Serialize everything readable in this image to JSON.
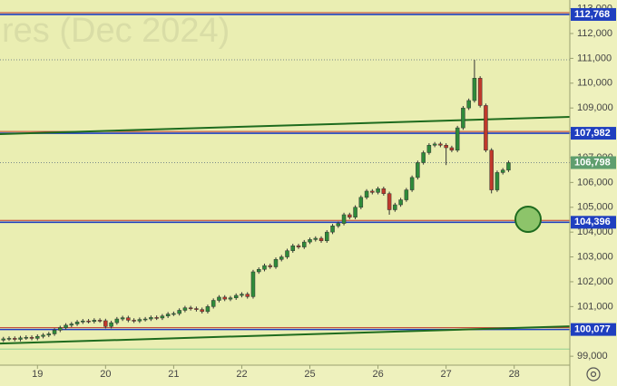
{
  "chart_data": {
    "type": "candlestick",
    "watermark": "res (Dec 2024)",
    "xlim": [
      -0.6,
      99.8
    ],
    "xticks": [
      {
        "value": 6,
        "label": "19"
      },
      {
        "value": 18,
        "label": "20"
      },
      {
        "value": 30,
        "label": "21"
      },
      {
        "value": 42,
        "label": "22"
      },
      {
        "value": 54,
        "label": "25"
      },
      {
        "value": 66,
        "label": "26"
      },
      {
        "value": 78,
        "label": "27"
      },
      {
        "value": 90,
        "label": "28"
      }
    ],
    "ylim": [
      98640,
      113350
    ],
    "yticks": [
      {
        "value": 99000,
        "label": "99,000"
      },
      {
        "value": 100000,
        "label": "100,000"
      },
      {
        "value": 101000,
        "label": "101,000"
      },
      {
        "value": 102000,
        "label": "102,000"
      },
      {
        "value": 103000,
        "label": "103,000"
      },
      {
        "value": 104000,
        "label": "104,000"
      },
      {
        "value": 105000,
        "label": "105,000"
      },
      {
        "value": 106000,
        "label": "106,000"
      },
      {
        "value": 107000,
        "label": "107,000"
      },
      {
        "value": 108000,
        "label": "108,000"
      },
      {
        "value": 109000,
        "label": "109,000"
      },
      {
        "value": 110000,
        "label": "110,000"
      },
      {
        "value": 111000,
        "label": "111,000"
      },
      {
        "value": 112000,
        "label": "112,000"
      },
      {
        "value": 113000,
        "label": "113,000"
      }
    ],
    "series": {
      "up_color": "#2e8b3a",
      "down_color": "#c0392b",
      "x": [
        0,
        1,
        2,
        3,
        4,
        5,
        6,
        7,
        8,
        9,
        10,
        11,
        12,
        13,
        14,
        15,
        16,
        17,
        18,
        19,
        20,
        21,
        22,
        23,
        24,
        25,
        26,
        27,
        28,
        29,
        30,
        31,
        32,
        33,
        34,
        35,
        36,
        37,
        38,
        39,
        40,
        41,
        42,
        43,
        44,
        45,
        46,
        47,
        48,
        49,
        50,
        51,
        52,
        53,
        54,
        55,
        56,
        57,
        58,
        59,
        60,
        61,
        62,
        63,
        64,
        65,
        66,
        67,
        68,
        69,
        70,
        71,
        72,
        73,
        74,
        75,
        76,
        77,
        78,
        79,
        80,
        81,
        82,
        83,
        84,
        85,
        86,
        87,
        88,
        89
      ],
      "open": [
        99650,
        99700,
        99720,
        99680,
        99740,
        99760,
        99720,
        99800,
        99850,
        99900,
        100050,
        100150,
        100250,
        100300,
        100380,
        100420,
        100400,
        100450,
        100430,
        100200,
        100350,
        100500,
        100550,
        100450,
        100420,
        100480,
        100500,
        100560,
        100540,
        100620,
        100700,
        100720,
        100850,
        100950,
        100920,
        100880,
        100800,
        101000,
        101250,
        101380,
        101300,
        101350,
        101450,
        101500,
        101400,
        102400,
        102500,
        102650,
        102600,
        102900,
        103000,
        103250,
        103450,
        103400,
        103600,
        103700,
        103750,
        103650,
        104000,
        104250,
        104350,
        104700,
        104600,
        105000,
        105400,
        105650,
        105600,
        105750,
        105550,
        104900,
        105100,
        105300,
        105700,
        106200,
        106800,
        107200,
        107500,
        107550,
        107500,
        107400,
        107300,
        108200,
        109000,
        109300,
        110200,
        109100,
        107300,
        105700,
        106400,
        106500
      ],
      "high": [
        99780,
        99800,
        99800,
        99820,
        99840,
        99840,
        99880,
        99930,
        99980,
        100130,
        100230,
        100330,
        100380,
        100460,
        100500,
        100500,
        100530,
        100530,
        100510,
        100430,
        100580,
        100630,
        100630,
        100530,
        100560,
        100580,
        100640,
        100640,
        100700,
        100780,
        100800,
        100930,
        101030,
        101030,
        101000,
        100960,
        101080,
        101330,
        101460,
        101460,
        101430,
        101530,
        101580,
        101580,
        102480,
        102580,
        102730,
        102730,
        102980,
        103080,
        103330,
        103530,
        103530,
        103680,
        103780,
        103830,
        103830,
        104080,
        104330,
        104430,
        104780,
        104780,
        105080,
        105480,
        105730,
        105730,
        105830,
        105830,
        105630,
        105180,
        105380,
        105780,
        106280,
        106880,
        107280,
        107580,
        107630,
        107630,
        107580,
        107480,
        108280,
        109080,
        109380,
        110940,
        110280,
        109180,
        107380,
        106480,
        106580,
        106878
      ],
      "low": [
        99570,
        99620,
        99600,
        99600,
        99660,
        99640,
        99640,
        99720,
        99770,
        99820,
        99970,
        100070,
        100170,
        100220,
        100300,
        100320,
        100320,
        100350,
        100120,
        100120,
        100270,
        100420,
        100370,
        100340,
        100340,
        100400,
        100420,
        100460,
        100460,
        100540,
        100620,
        100640,
        100770,
        100840,
        100800,
        100720,
        100720,
        100920,
        101170,
        101220,
        101220,
        101270,
        101370,
        101320,
        101320,
        102320,
        102420,
        102520,
        102520,
        102820,
        102920,
        103170,
        103320,
        103320,
        103520,
        103620,
        103570,
        103570,
        103920,
        104170,
        104270,
        104520,
        104520,
        104920,
        105320,
        105520,
        105520,
        105470,
        104700,
        104820,
        105020,
        105220,
        105620,
        106120,
        106720,
        107120,
        107420,
        107420,
        106700,
        107220,
        107220,
        108120,
        108920,
        109220,
        109020,
        107220,
        105560,
        105620,
        106320,
        106420
      ],
      "close": [
        99700,
        99720,
        99680,
        99740,
        99760,
        99720,
        99800,
        99850,
        99900,
        100050,
        100150,
        100250,
        100300,
        100380,
        100420,
        100400,
        100450,
        100430,
        100200,
        100350,
        100500,
        100550,
        100450,
        100420,
        100480,
        100500,
        100560,
        100540,
        100620,
        100700,
        100720,
        100850,
        100950,
        100920,
        100880,
        100800,
        101000,
        101250,
        101380,
        101300,
        101350,
        101450,
        101500,
        101400,
        102400,
        102500,
        102650,
        102600,
        102900,
        103000,
        103250,
        103450,
        103400,
        103600,
        103700,
        103750,
        103650,
        104000,
        104250,
        104350,
        104700,
        104600,
        105000,
        105400,
        105650,
        105600,
        105750,
        105550,
        104900,
        105100,
        105300,
        105700,
        106200,
        106800,
        107200,
        107500,
        107550,
        107500,
        107400,
        107300,
        108200,
        109000,
        109300,
        110200,
        109100,
        107300,
        105700,
        106400,
        106500,
        106798
      ]
    },
    "levels": [
      {
        "value": 112768,
        "label": "112,768",
        "color": "#1f3fbf"
      },
      {
        "value": 107982,
        "label": "107,982",
        "color": "#1f3fbf"
      },
      {
        "value": 104396,
        "label": "104,396",
        "color": "#1f3fbf"
      },
      {
        "value": 100077,
        "label": "100,077",
        "color": "#1f3fbf"
      }
    ],
    "last_price": {
      "value": 106798,
      "label": "106,798",
      "color": "#5f9e6e"
    },
    "guide_lines": [
      {
        "value": 99290,
        "color": "#8fd08f"
      }
    ],
    "trendlines": [
      {
        "x": [
          -0.6,
          99.8
        ],
        "y": [
          107950,
          108640
        ],
        "color": "#1e6b1e"
      },
      {
        "x": [
          -0.6,
          99.8
        ],
        "y": [
          99510,
          100205
        ],
        "color": "#1e6b1e"
      }
    ]
  }
}
